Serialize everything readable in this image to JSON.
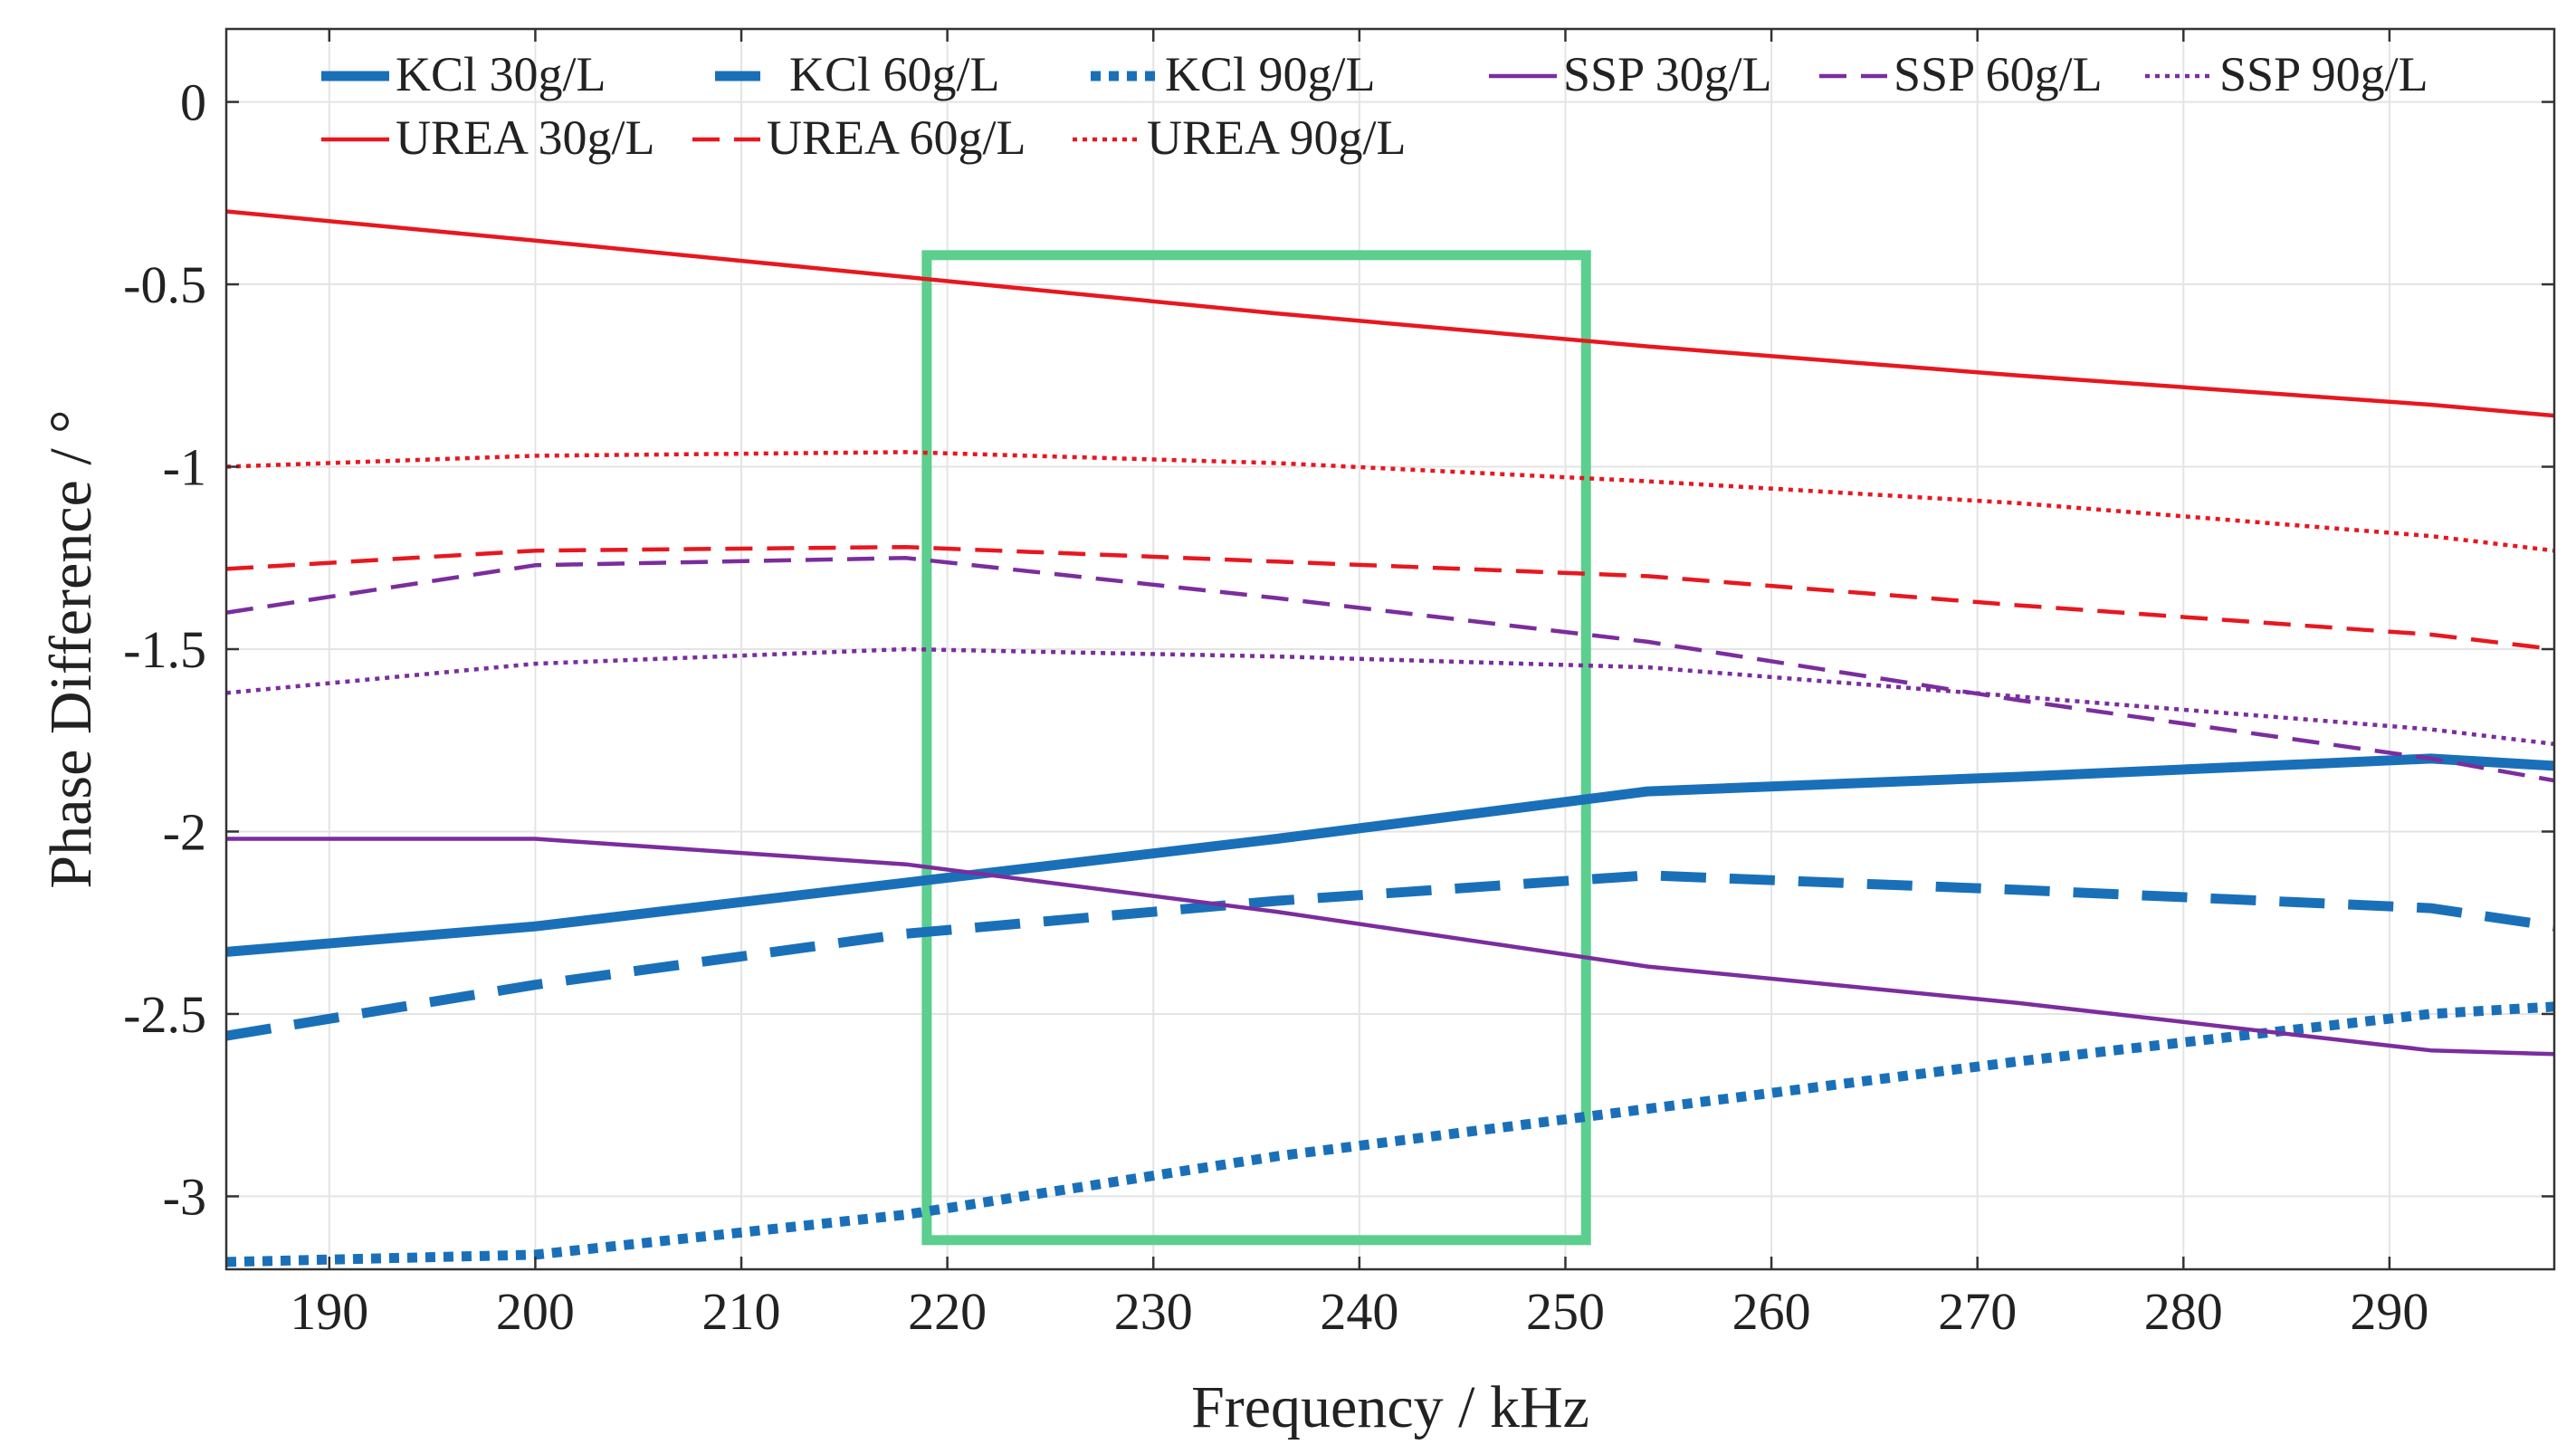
{
  "chart_data": {
    "type": "line",
    "title": "",
    "xlabel": "Frequency / kHz",
    "ylabel": "Phase Difference / °",
    "xlim": [
      185,
      298
    ],
    "ylim": [
      -3.2,
      0.2
    ],
    "xticks": [
      190,
      200,
      210,
      220,
      230,
      240,
      250,
      260,
      270,
      280,
      290
    ],
    "yticks": [
      0,
      -0.5,
      -1,
      -1.5,
      -2,
      -2.5,
      -3
    ],
    "ytick_labels": [
      "0",
      "-0.5",
      "-1",
      "-1.5",
      "-2",
      "-2.5",
      "-3"
    ],
    "grid": true,
    "legend_position": "top",
    "highlight_box": {
      "x": [
        219,
        251
      ],
      "y": [
        -3.12,
        -0.42
      ],
      "color": "#5ccf8e"
    },
    "series": [
      {
        "name": "KCl 30g/L",
        "color": "#1a70b8",
        "style": "solid",
        "weight": "heavy",
        "x": [
          185,
          200,
          218,
          236,
          254,
          272,
          292,
          298
        ],
        "y": [
          -2.33,
          -2.26,
          -2.14,
          -2.02,
          -1.89,
          -1.85,
          -1.8,
          -1.82
        ]
      },
      {
        "name": "KCl 60g/L",
        "color": "#1a70b8",
        "style": "dashed",
        "weight": "heavy",
        "x": [
          185,
          200,
          218,
          236,
          254,
          272,
          292,
          298
        ],
        "y": [
          -2.56,
          -2.42,
          -2.28,
          -2.19,
          -2.12,
          -2.16,
          -2.21,
          -2.26
        ]
      },
      {
        "name": "KCl 90g/L",
        "color": "#1a70b8",
        "style": "dotted",
        "weight": "heavy",
        "x": [
          185,
          200,
          218,
          236,
          254,
          272,
          292,
          298
        ],
        "y": [
          -3.18,
          -3.16,
          -3.05,
          -2.89,
          -2.76,
          -2.63,
          -2.5,
          -2.48
        ]
      },
      {
        "name": "SSP 30g/L",
        "color": "#7b2d9e",
        "style": "solid",
        "weight": "thin",
        "x": [
          185,
          200,
          218,
          236,
          254,
          272,
          292,
          298
        ],
        "y": [
          -2.02,
          -2.02,
          -2.09,
          -2.22,
          -2.37,
          -2.47,
          -2.6,
          -2.61
        ]
      },
      {
        "name": "SSP 60g/L",
        "color": "#7b2d9e",
        "style": "dashed",
        "weight": "thin",
        "x": [
          185,
          200,
          218,
          236,
          254,
          272,
          292,
          298
        ],
        "y": [
          -1.4,
          -1.27,
          -1.25,
          -1.36,
          -1.48,
          -1.64,
          -1.8,
          -1.86
        ]
      },
      {
        "name": "SSP 90g/L",
        "color": "#7b2d9e",
        "style": "dotted",
        "weight": "thin",
        "x": [
          185,
          200,
          218,
          236,
          254,
          272,
          292,
          298
        ],
        "y": [
          -1.62,
          -1.54,
          -1.5,
          -1.52,
          -1.55,
          -1.63,
          -1.72,
          -1.76
        ]
      },
      {
        "name": "UREA 30g/L",
        "color": "#e8171f",
        "style": "solid",
        "weight": "thin",
        "x": [
          185,
          200,
          218,
          236,
          254,
          272,
          292,
          298
        ],
        "y": [
          -0.3,
          -0.38,
          -0.48,
          -0.58,
          -0.67,
          -0.75,
          -0.83,
          -0.86
        ]
      },
      {
        "name": "UREA 60g/L",
        "color": "#e8171f",
        "style": "dashed",
        "weight": "thin",
        "x": [
          185,
          200,
          218,
          236,
          254,
          272,
          292,
          298
        ],
        "y": [
          -1.28,
          -1.23,
          -1.22,
          -1.26,
          -1.3,
          -1.38,
          -1.46,
          -1.5
        ]
      },
      {
        "name": "UREA 90g/L",
        "color": "#e8171f",
        "style": "dotted",
        "weight": "thin",
        "x": [
          185,
          200,
          218,
          236,
          254,
          272,
          292,
          298
        ],
        "y": [
          -1.0,
          -0.97,
          -0.96,
          -0.99,
          -1.04,
          -1.1,
          -1.19,
          -1.23
        ]
      }
    ]
  }
}
